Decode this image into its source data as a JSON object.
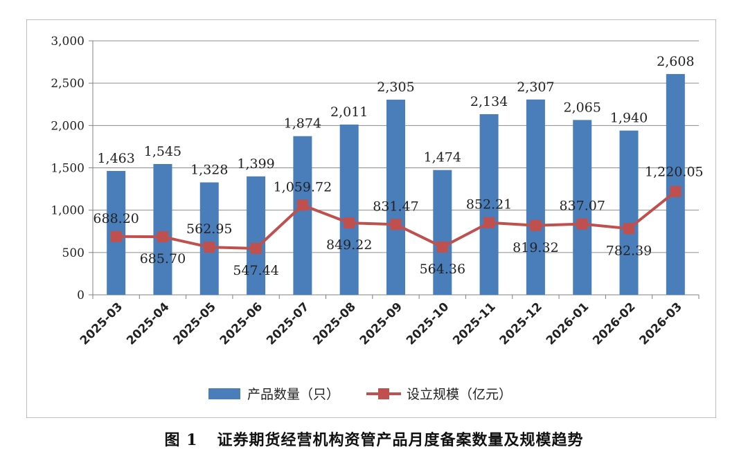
{
  "chart_data": {
    "type": "bar+line",
    "categories": [
      "2025-03",
      "2025-04",
      "2025-05",
      "2025-06",
      "2025-07",
      "2025-08",
      "2025-09",
      "2025-10",
      "2025-11",
      "2025-12",
      "2026-01",
      "2026-02",
      "2026-03"
    ],
    "series": [
      {
        "name": "产品数量（只）",
        "type": "bar",
        "color": "#4a7ebb",
        "values": [
          1463,
          1545,
          1328,
          1399,
          1874,
          2011,
          2305,
          1474,
          2134,
          2307,
          2065,
          1940,
          2608
        ],
        "labels": [
          "1,463",
          "1,545",
          "1,328",
          "1,399",
          "1,874",
          "2,011",
          "2,305",
          "1,474",
          "2,134",
          "2,307",
          "2,065",
          "1,940",
          "2,608"
        ]
      },
      {
        "name": "设立规模（亿元）",
        "type": "line",
        "color": "#c0504d",
        "values": [
          688.2,
          685.7,
          562.95,
          547.44,
          1059.72,
          849.22,
          831.47,
          564.36,
          852.21,
          819.32,
          837.07,
          782.39,
          1220.05
        ],
        "labels": [
          "688.20",
          "685.70",
          "562.95",
          "547.44",
          "1,059.72",
          "849.22",
          "831.47",
          "564.36",
          "852.21",
          "819.32",
          "837.07",
          "782.39",
          "1,220.05"
        ]
      }
    ],
    "ylim": [
      0,
      3000
    ],
    "yticks": [
      0,
      500,
      1000,
      1500,
      2000,
      2500,
      3000
    ],
    "ytick_labels": [
      "0",
      "500",
      "1,000",
      "1,500",
      "2,000",
      "2,500",
      "3,000"
    ],
    "grid": true,
    "legend": "bottom",
    "title": "",
    "xlabel": "",
    "ylabel": ""
  },
  "caption": {
    "number": "图 1",
    "text": "证券期货经营机构资管产品月度备案数量及规模趋势"
  }
}
